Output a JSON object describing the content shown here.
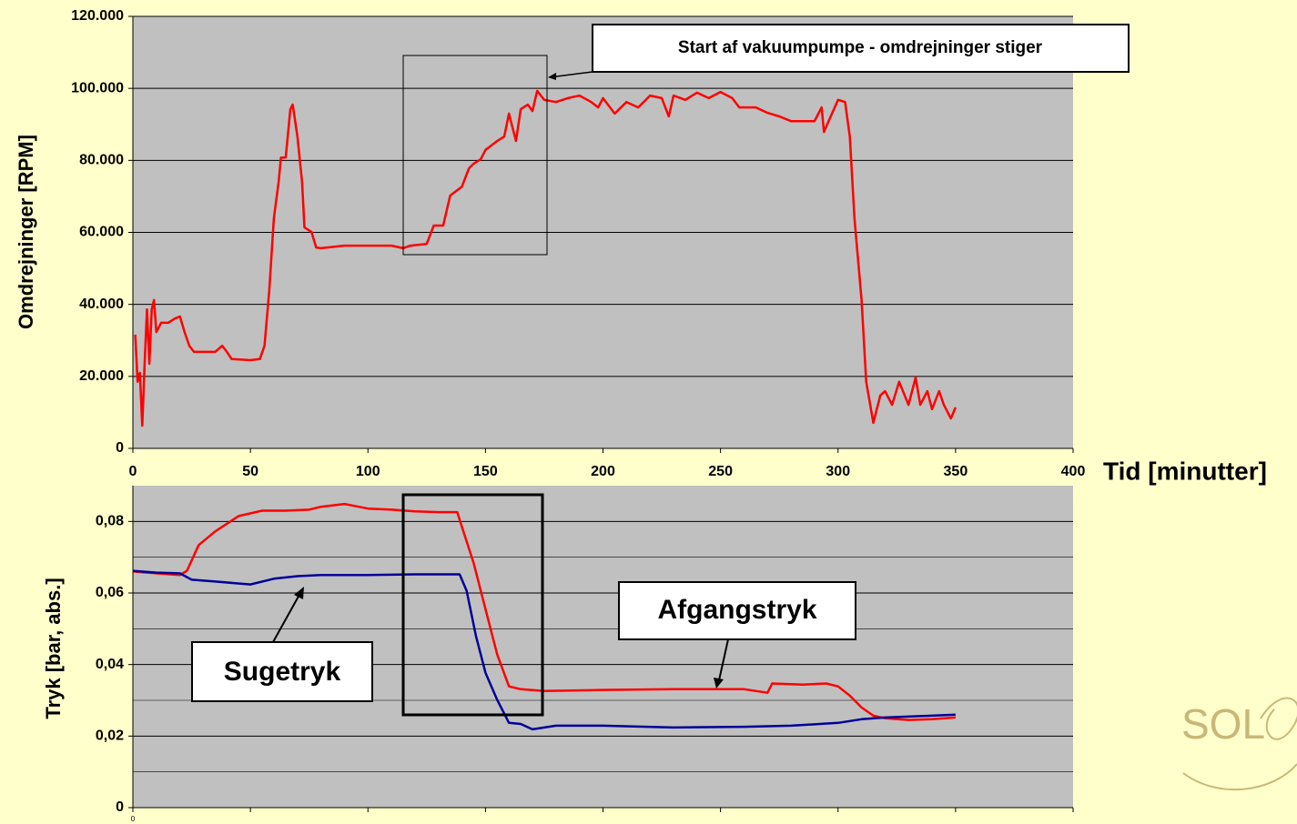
{
  "chart_data": [
    {
      "type": "line",
      "ylabel": "Omdrejninger [RPM]",
      "xlabel": "Tid [minutter]",
      "annotation": "Start af vakuumpumpe - omdrejninger stiger",
      "xlim": [
        0,
        400
      ],
      "xticks": [
        0,
        50,
        100,
        150,
        200,
        250,
        300,
        350,
        400
      ],
      "ylim": [
        0,
        120000
      ],
      "yticks": [
        {
          "value": 0,
          "label": "0"
        },
        {
          "value": 20000,
          "label": "20.000"
        },
        {
          "value": 40000,
          "label": "40.000"
        },
        {
          "value": 60000,
          "label": "60.000"
        },
        {
          "value": 80000,
          "label": "80.000"
        },
        {
          "value": 100000,
          "label": "100.000"
        },
        {
          "value": 120000,
          "label": "120.000"
        }
      ],
      "grid": true,
      "series": [
        {
          "color": "#ff0000",
          "x": [
            1,
            2,
            3,
            4,
            5,
            6,
            7,
            8,
            9,
            10,
            12,
            15,
            18,
            20,
            22,
            24,
            26,
            30,
            35,
            38,
            40,
            42,
            50,
            54,
            56,
            58,
            60,
            62,
            63,
            65,
            67,
            68,
            70,
            72,
            73,
            76,
            78,
            80,
            90,
            100,
            110,
            115,
            118,
            125,
            128,
            132,
            135,
            140,
            143,
            145,
            148,
            150,
            155,
            158,
            160,
            163,
            165,
            168,
            170,
            172,
            175,
            180,
            185,
            190,
            195,
            198,
            200,
            205,
            210,
            215,
            220,
            225,
            228,
            230,
            235,
            240,
            245,
            250,
            255,
            258,
            265,
            270,
            275,
            280,
            290,
            293,
            294,
            296,
            300,
            303,
            305,
            307,
            310,
            312,
            315,
            318,
            320,
            323,
            326,
            330,
            333,
            335,
            338,
            340,
            343,
            345,
            348,
            350
          ],
          "values": [
            31600,
            18500,
            21000,
            6300,
            23500,
            38600,
            23500,
            38600,
            41200,
            32300,
            34900,
            34900,
            36100,
            36600,
            32300,
            28500,
            26800,
            26800,
            26800,
            28500,
            26800,
            24800,
            24500,
            24800,
            28500,
            43700,
            63900,
            74000,
            80800,
            80800,
            94200,
            95500,
            86600,
            74000,
            61400,
            60100,
            55800,
            55600,
            56300,
            56300,
            56300,
            55600,
            56300,
            56800,
            61900,
            61900,
            70200,
            72700,
            77800,
            79100,
            80300,
            82900,
            85400,
            86600,
            93000,
            85400,
            94200,
            95500,
            93700,
            99300,
            96800,
            96200,
            97300,
            98000,
            96200,
            94700,
            97300,
            93000,
            96200,
            94700,
            98000,
            97300,
            92200,
            98000,
            96800,
            98800,
            97300,
            99000,
            97300,
            94700,
            94700,
            93200,
            92200,
            90900,
            90900,
            94700,
            87900,
            90900,
            96800,
            96200,
            86600,
            63900,
            41200,
            18500,
            7100,
            14700,
            15900,
            12100,
            18500,
            12100,
            19700,
            12100,
            15900,
            10900,
            15900,
            12100,
            8300,
            11400
          ]
        }
      ]
    },
    {
      "type": "line",
      "ylabel": "Tryk [bar, abs.]",
      "xlim": [
        0,
        400
      ],
      "xticks": [
        0,
        50,
        100,
        150,
        200,
        250,
        300,
        350,
        400
      ],
      "ylim": [
        0,
        0.09
      ],
      "yticks": [
        0,
        {
          "value": 0.02,
          "label": "0,02"
        },
        {
          "value": 0.04,
          "label": "0,04"
        },
        {
          "value": 0.06,
          "label": "0,06"
        },
        {
          "value": 0.08,
          "label": "0,08"
        }
      ],
      "minor_yticks": [
        0.01,
        0.03,
        0.05,
        0.07
      ],
      "grid": true,
      "series": [
        {
          "name": "Afgangstryk",
          "color": "#ff0000",
          "x": [
            0,
            10,
            20,
            23,
            28,
            35,
            45,
            55,
            65,
            75,
            80,
            90,
            100,
            110,
            120,
            130,
            138,
            140,
            145,
            150,
            155,
            160,
            165,
            175,
            200,
            230,
            260,
            270,
            272,
            285,
            295,
            300,
            305,
            310,
            315,
            320,
            330,
            340,
            350
          ],
          "values": [
            0.066,
            0.0655,
            0.065,
            0.0662,
            0.0734,
            0.0772,
            0.0815,
            0.083,
            0.083,
            0.0833,
            0.0841,
            0.0849,
            0.0836,
            0.0833,
            0.0828,
            0.0826,
            0.0826,
            0.0785,
            0.0683,
            0.0555,
            0.0428,
            0.0339,
            0.0331,
            0.0326,
            0.0329,
            0.0331,
            0.0331,
            0.0321,
            0.0347,
            0.0344,
            0.0347,
            0.0339,
            0.0313,
            0.028,
            0.0257,
            0.025,
            0.0245,
            0.0247,
            0.0252
          ]
        },
        {
          "name": "Sugetryk",
          "color": "#000099",
          "x": [
            0,
            10,
            20,
            25,
            35,
            50,
            60,
            70,
            80,
            100,
            120,
            139,
            142,
            146,
            150,
            155,
            160,
            165,
            170,
            180,
            200,
            230,
            260,
            280,
            300,
            310,
            320,
            340,
            350
          ],
          "values": [
            0.0662,
            0.0657,
            0.0655,
            0.0637,
            0.0632,
            0.0624,
            0.064,
            0.0647,
            0.065,
            0.065,
            0.0652,
            0.0652,
            0.0606,
            0.0479,
            0.0377,
            0.0301,
            0.0237,
            0.0234,
            0.0219,
            0.0229,
            0.0229,
            0.0224,
            0.0226,
            0.0229,
            0.0237,
            0.0247,
            0.0252,
            0.0257,
            0.026
          ]
        }
      ]
    }
  ],
  "logo": "SOL"
}
